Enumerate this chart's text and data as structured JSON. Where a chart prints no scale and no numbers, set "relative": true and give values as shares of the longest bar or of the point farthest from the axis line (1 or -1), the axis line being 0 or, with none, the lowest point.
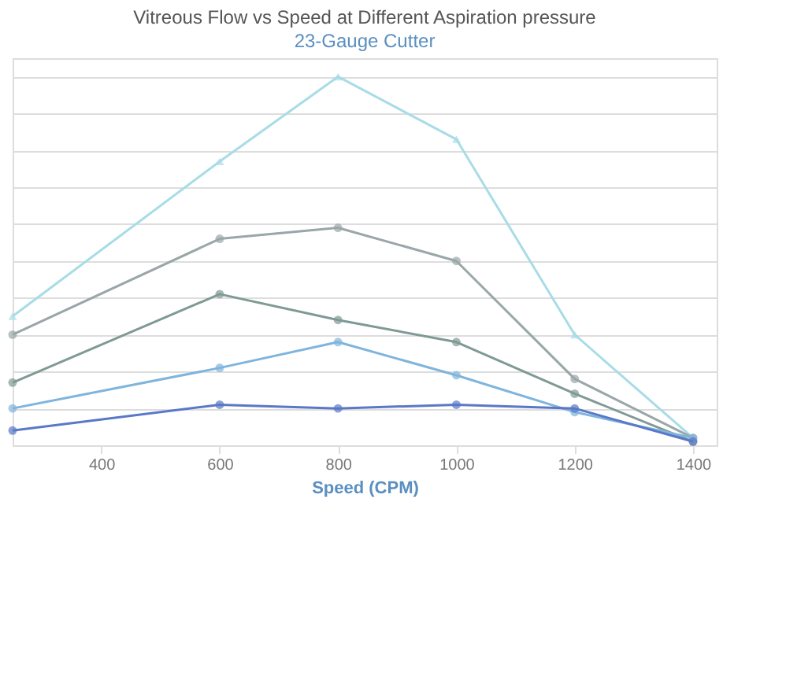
{
  "chart_data": {
    "type": "line",
    "title": "Vitreous Flow vs Speed at Different Aspiration pressure",
    "subtitle": "23-Gauge Cutter",
    "xlabel": "Speed (CPM)",
    "x": [
      250,
      600,
      800,
      1000,
      1200,
      1400
    ],
    "xlim": [
      250,
      1440
    ],
    "xticks": [
      400,
      600,
      800,
      1000,
      1200,
      1400
    ],
    "relative": true,
    "grid": "y",
    "tick_labels": "x",
    "marker": "circle",
    "line_style": "solid",
    "series": [
      {
        "color": "#a8dce6",
        "marker": "triangle",
        "values": [
          0.35,
          0.77,
          1,
          0.83,
          0.3,
          0.02
        ]
      },
      {
        "color": "#9aa6a8",
        "values": [
          0.3,
          0.56,
          0.59,
          0.5,
          0.18,
          0.02
        ]
      },
      {
        "color": "#7f9a95",
        "values": [
          0.17,
          0.41,
          0.34,
          0.28,
          0.14,
          0.01
        ]
      },
      {
        "color": "#7fb5dd",
        "values": [
          0.1,
          0.21,
          0.28,
          0.19,
          0.09,
          0.02
        ]
      },
      {
        "color": "#5a78c8",
        "values": [
          0.04,
          0.11,
          0.1,
          0.11,
          0.1,
          0.01
        ]
      }
    ]
  }
}
